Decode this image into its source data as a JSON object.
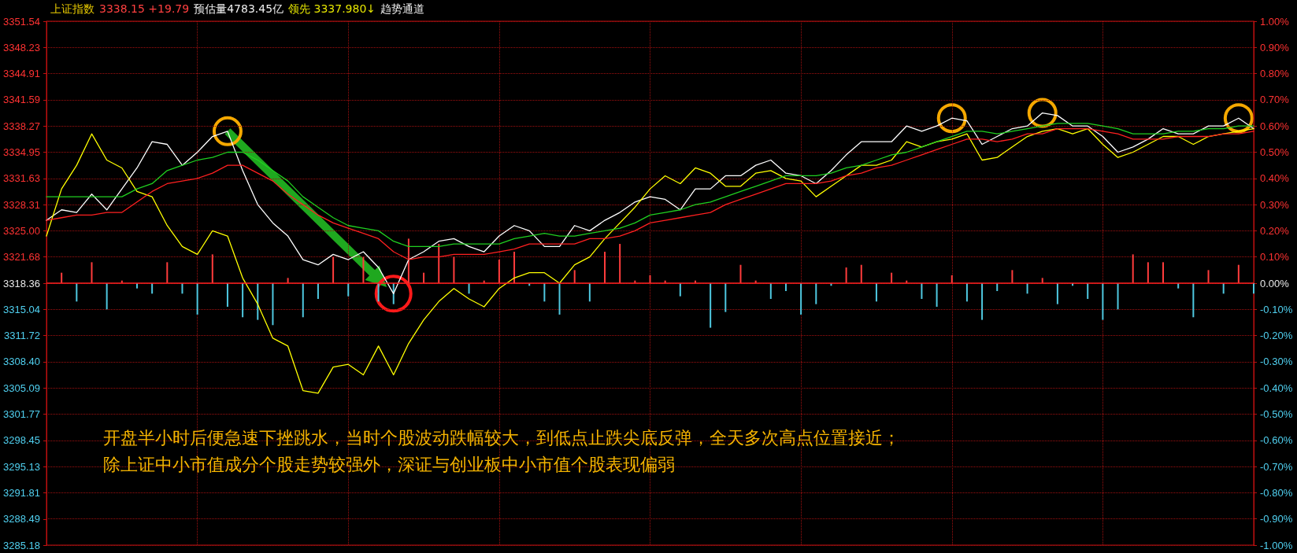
{
  "chart_data": {
    "type": "line",
    "annotations": [
      "上证指数",
      "3338.15 +19.79",
      "预估量4783.45亿",
      "领先 3337.980↓",
      "趋势通道",
      "开盘半小时后便急速下挫跳水，当时个股波动跌幅较大，到低点止跌尖底反弹，全天多次高点位置接近；",
      "除上证中小市值成分个股走势较强外，深证与创业板中小市值个股表现偏弱"
    ],
    "categories": [
      null,
      null,
      null,
      null,
      null,
      null,
      null,
      null,
      null,
      null,
      null,
      null,
      null,
      null,
      null,
      null,
      null,
      null,
      null,
      null,
      null,
      null,
      null,
      null,
      null,
      null,
      null,
      null,
      null,
      null,
      null,
      null,
      null,
      null,
      null,
      null,
      null,
      null,
      null,
      null,
      null,
      null,
      null,
      null,
      null,
      null,
      null,
      null,
      null,
      null,
      null,
      null,
      null,
      null,
      null,
      null,
      null,
      null,
      null,
      null,
      null,
      null,
      null,
      null,
      null,
      null,
      null,
      null,
      null,
      null,
      null,
      null,
      null,
      null,
      null,
      null,
      null,
      null,
      null,
      null,
      null
    ],
    "series": [
      {
        "color": "#ffffff",
        "axis": "y2",
        "values": [
          0.24,
          0.28,
          0.27,
          0.34,
          0.28,
          0.36,
          0.44,
          0.54,
          0.53,
          0.45,
          0.5,
          0.56,
          0.58,
          0.43,
          0.3,
          0.23,
          0.18,
          0.09,
          0.07,
          0.11,
          0.09,
          0.12,
          0.06,
          -0.04,
          0.09,
          0.12,
          0.16,
          0.17,
          0.14,
          0.12,
          0.18,
          0.22,
          0.2,
          0.14,
          0.14,
          0.22,
          0.2,
          0.24,
          0.27,
          0.31,
          0.33,
          0.32,
          0.28,
          0.36,
          0.36,
          0.41,
          0.41,
          0.45,
          0.47,
          0.42,
          0.41,
          0.38,
          0.43,
          0.49,
          0.54,
          0.54,
          0.54,
          0.6,
          0.58,
          0.6,
          0.63,
          0.62,
          0.53,
          0.56,
          0.59,
          0.6,
          0.65,
          0.64,
          0.6,
          0.6,
          0.56,
          0.5,
          0.52,
          0.55,
          0.59,
          0.57,
          0.57,
          0.6,
          0.6,
          0.63,
          0.59
        ]
      },
      {
        "color": "#ffff00",
        "axis": "y2",
        "values": [
          0.18,
          0.36,
          0.45,
          0.57,
          0.47,
          0.44,
          0.35,
          0.33,
          0.22,
          0.14,
          0.11,
          0.2,
          0.18,
          0.02,
          -0.08,
          -0.21,
          -0.24,
          -0.41,
          -0.42,
          -0.32,
          -0.31,
          -0.35,
          -0.24,
          -0.35,
          -0.23,
          -0.14,
          -0.07,
          -0.02,
          -0.06,
          -0.09,
          -0.02,
          0.02,
          0.04,
          0.04,
          0.0,
          0.07,
          0.1,
          0.17,
          0.23,
          0.29,
          0.36,
          0.41,
          0.38,
          0.44,
          0.42,
          0.37,
          0.37,
          0.42,
          0.43,
          0.4,
          0.39,
          0.33,
          0.37,
          0.41,
          0.45,
          0.45,
          0.47,
          0.54,
          0.52,
          0.54,
          0.55,
          0.57,
          0.47,
          0.48,
          0.52,
          0.56,
          0.58,
          0.59,
          0.57,
          0.59,
          0.53,
          0.48,
          0.5,
          0.53,
          0.56,
          0.56,
          0.53,
          0.56,
          0.57,
          0.58,
          0.59
        ]
      },
      {
        "color": "#20d020",
        "axis": "y2",
        "values": [
          0.33,
          0.33,
          0.33,
          0.33,
          0.33,
          0.33,
          0.36,
          0.38,
          0.43,
          0.45,
          0.47,
          0.48,
          0.5,
          0.5,
          0.47,
          0.43,
          0.39,
          0.33,
          0.29,
          0.25,
          0.22,
          0.21,
          0.2,
          0.16,
          0.14,
          0.14,
          0.14,
          0.15,
          0.15,
          0.15,
          0.15,
          0.17,
          0.18,
          0.19,
          0.18,
          0.18,
          0.19,
          0.2,
          0.21,
          0.23,
          0.26,
          0.27,
          0.28,
          0.3,
          0.31,
          0.33,
          0.35,
          0.37,
          0.39,
          0.41,
          0.41,
          0.41,
          0.42,
          0.44,
          0.45,
          0.47,
          0.49,
          0.5,
          0.52,
          0.54,
          0.56,
          0.58,
          0.58,
          0.57,
          0.58,
          0.59,
          0.6,
          0.61,
          0.61,
          0.61,
          0.6,
          0.59,
          0.57,
          0.57,
          0.57,
          0.58,
          0.58,
          0.59,
          0.59,
          0.6,
          0.6
        ]
      },
      {
        "color": "#ff2020",
        "axis": "y2",
        "values": [
          0.24,
          0.25,
          0.26,
          0.26,
          0.27,
          0.27,
          0.31,
          0.35,
          0.38,
          0.39,
          0.4,
          0.42,
          0.45,
          0.45,
          0.42,
          0.39,
          0.34,
          0.3,
          0.26,
          0.23,
          0.21,
          0.19,
          0.17,
          0.12,
          0.09,
          0.1,
          0.1,
          0.11,
          0.11,
          0.11,
          0.12,
          0.13,
          0.15,
          0.15,
          0.15,
          0.15,
          0.17,
          0.17,
          0.18,
          0.2,
          0.23,
          0.24,
          0.25,
          0.26,
          0.27,
          0.3,
          0.32,
          0.34,
          0.36,
          0.38,
          0.38,
          0.38,
          0.39,
          0.41,
          0.42,
          0.44,
          0.45,
          0.47,
          0.49,
          0.51,
          0.53,
          0.55,
          0.55,
          0.54,
          0.55,
          0.57,
          0.57,
          0.59,
          0.59,
          0.59,
          0.58,
          0.57,
          0.55,
          0.55,
          0.55,
          0.56,
          0.56,
          0.56,
          0.57,
          0.57,
          0.58
        ]
      },
      {
        "type": "bar",
        "axis": "y2",
        "colors": [
          "#ff3c3c",
          "#ff3c3c",
          "#4fc8e0",
          "#ff3c3c",
          "#4fc8e0",
          "#ff3c3c",
          "#4fc8e0",
          "#4fc8e0",
          "#ff3c3c",
          "#4fc8e0",
          "#4fc8e0",
          "#ff3c3c",
          "#4fc8e0",
          "#4fc8e0",
          "#4fc8e0",
          "#4fc8e0",
          "#ff3c3c",
          "#4fc8e0",
          "#4fc8e0",
          "#ff3c3c",
          "#4fc8e0",
          "#ff3c3c",
          "#4fc8e0",
          "#4fc8e0",
          "#ff3c3c",
          "#ff3c3c",
          "#ff3c3c",
          "#ff3c3c",
          "#4fc8e0",
          "#ff3c3c",
          "#ff3c3c",
          "#ff3c3c",
          "#4fc8e0",
          "#4fc8e0",
          "#4fc8e0",
          "#ff3c3c",
          "#4fc8e0",
          "#ff3c3c",
          "#ff3c3c",
          "#ff3c3c",
          "#ff3c3c",
          "#ff3c3c",
          "#4fc8e0",
          "#ff3c3c",
          "#4fc8e0",
          "#4fc8e0",
          "#ff3c3c",
          "#ff3c3c",
          "#4fc8e0",
          "#4fc8e0",
          "#4fc8e0",
          "#4fc8e0",
          "#4fc8e0",
          "#ff3c3c",
          "#ff3c3c",
          "#4fc8e0",
          "#ff3c3c",
          "#ff3c3c",
          "#4fc8e0",
          "#4fc8e0",
          "#ff3c3c",
          "#4fc8e0",
          "#4fc8e0",
          "#4fc8e0",
          "#ff3c3c",
          "#4fc8e0",
          "#ff3c3c",
          "#4fc8e0",
          "#4fc8e0",
          "#4fc8e0",
          "#4fc8e0",
          "#4fc8e0",
          "#ff3c3c",
          "#ff3c3c",
          "#ff3c3c",
          "#4fc8e0",
          "#4fc8e0",
          "#ff3c3c",
          "#4fc8e0",
          "#ff3c3c",
          "#4fc8e0"
        ],
        "values": [
          null,
          0.04,
          -0.07,
          0.08,
          -0.1,
          0.01,
          -0.02,
          -0.04,
          0.08,
          -0.04,
          -0.12,
          0.11,
          -0.09,
          -0.13,
          -0.14,
          -0.16,
          0.02,
          -0.13,
          -0.06,
          0.1,
          -0.05,
          0.1,
          -0.07,
          -0.08,
          0.17,
          0.04,
          0.15,
          0.1,
          -0.04,
          0.01,
          0.09,
          0.12,
          -0.01,
          -0.07,
          -0.12,
          0.05,
          -0.07,
          0.12,
          0.15,
          0.01,
          0.03,
          0.01,
          -0.05,
          0.01,
          -0.17,
          -0.11,
          0.07,
          0.01,
          -0.06,
          -0.03,
          -0.12,
          -0.08,
          -0.01,
          0.06,
          0.07,
          -0.07,
          0.04,
          0.01,
          -0.06,
          -0.09,
          0.03,
          -0.07,
          -0.14,
          -0.03,
          0.05,
          -0.04,
          0.02,
          -0.08,
          -0.01,
          -0.06,
          -0.14,
          -0.1,
          0.11,
          0.08,
          0.08,
          -0.02,
          -0.13,
          0.05,
          -0.04,
          0.07,
          -0.04
        ]
      }
    ],
    "ylim": [
      3285.18,
      3351.54
    ],
    "yticks": [
      3285.18,
      3288.49,
      3291.81,
      3295.13,
      3298.45,
      3301.77,
      3305.09,
      {
        "value": 3308.4,
        "label": "3308.40"
      },
      3311.72,
      3315.04,
      3318.36,
      3321.68,
      {
        "value": 3325,
        "label": "3325.00"
      },
      3328.31,
      3331.63,
      3334.95,
      3338.27,
      3341.59,
      3344.91,
      3348.23,
      3351.54
    ],
    "y2lim": [
      -1,
      1
    ],
    "y2ticks": [
      {
        "value": -1,
        "label": "-1.00%"
      },
      {
        "value": -0.9,
        "label": "-0.90%"
      },
      {
        "value": -0.8,
        "label": "-0.80%"
      },
      {
        "value": -0.7,
        "label": "-0.70%"
      },
      {
        "value": -0.6,
        "label": "-0.60%"
      },
      {
        "value": -0.5,
        "label": "-0.50%"
      },
      {
        "value": -0.4,
        "label": "-0.40%"
      },
      {
        "value": -0.3,
        "label": "-0.30%"
      },
      {
        "value": -0.2,
        "label": "-0.20%"
      },
      {
        "value": -0.1,
        "label": "-0.10%"
      },
      {
        "value": 0,
        "label": "0.00%"
      },
      {
        "value": 0.1,
        "label": "0.10%"
      },
      {
        "value": 0.2,
        "label": "0.20%"
      },
      {
        "value": 0.3,
        "label": "0.30%"
      },
      {
        "value": 0.4,
        "label": "0.40%"
      },
      {
        "value": 0.5,
        "label": "0.50%"
      },
      {
        "value": 0.6,
        "label": "0.60%"
      },
      {
        "value": 0.7,
        "label": "0.70%"
      },
      {
        "value": 0.8,
        "label": "0.80%"
      },
      {
        "value": 0.9,
        "label": "0.90%"
      },
      {
        "value": 1,
        "label": "1.00%"
      }
    ],
    "ref_lines": [
      {
        "axis": "y2",
        "value": 0,
        "color": "#ff2020"
      }
    ],
    "grid": true,
    "marker": "none",
    "line_style": "solid"
  }
}
